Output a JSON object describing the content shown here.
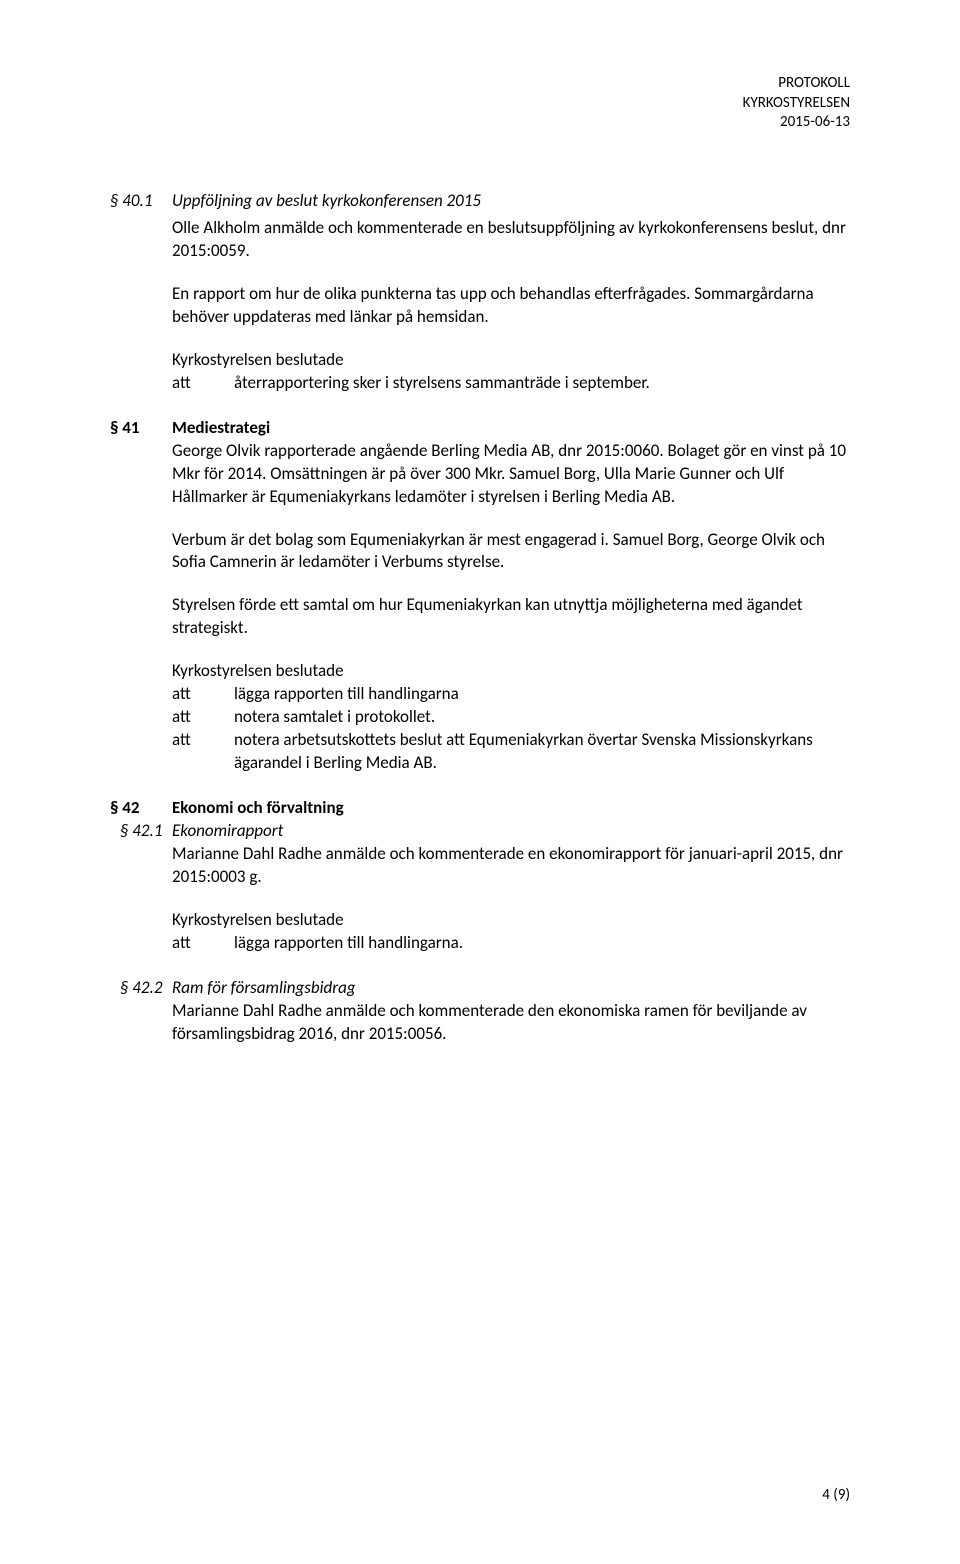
{
  "header": {
    "line1": "PROTOKOLL",
    "line2": "KYRKOSTYRELSEN",
    "line3": "2015-06-13"
  },
  "s40_1": {
    "num": "§ 40.1",
    "title": "Uppföljning av beslut kyrkokonferensen 2015",
    "p1": "Olle Alkholm anmälde och kommenterade en beslutsuppföljning av kyrkokonferensens beslut, dnr 2015:0059.",
    "p2": "En rapport om hur de olika punkterna tas upp och behandlas efterfrågades. Sommargårdarna behöver uppdateras med länkar på hemsidan.",
    "decision_intro": "Kyrkostyrelsen beslutade",
    "att": "att",
    "d1": "återrapportering sker i styrelsens sammanträde i september."
  },
  "s41": {
    "num": "§ 41",
    "title": "Mediestrategi",
    "p1": "George Olvik rapporterade angående Berling Media AB, dnr 2015:0060. Bolaget gör en vinst på 10 Mkr för 2014. Omsättningen är på över 300 Mkr. Samuel Borg, Ulla Marie Gunner och Ulf Hållmarker är Equmeniakyrkans ledamöter i styrelsen i Berling Media AB.",
    "p2": "Verbum är det bolag som Equmeniakyrkan är mest engagerad i. Samuel Borg, George Olvik och Sofia Camnerin är ledamöter i Verbums styrelse.",
    "p3": "Styrelsen förde ett samtal om hur Equmeniakyrkan kan utnyttja möjligheterna med ägandet strategiskt.",
    "decision_intro": "Kyrkostyrelsen beslutade",
    "att": "att",
    "d1": "lägga rapporten till handlingarna",
    "d2": "notera samtalet i protokollet.",
    "d3": "notera arbetsutskottets beslut att Equmeniakyrkan övertar Svenska Missionskyrkans ägarandel i Berling Media AB."
  },
  "s42": {
    "num": "§ 42",
    "title": "Ekonomi och förvaltning"
  },
  "s42_1": {
    "num": "§ 42.1",
    "title": "Ekonomirapport",
    "p1": "Marianne Dahl Radhe anmälde och kommenterade en ekonomirapport för januari-april 2015, dnr 2015:0003 g.",
    "decision_intro": "Kyrkostyrelsen beslutade",
    "att": "att",
    "d1": "lägga rapporten till handlingarna."
  },
  "s42_2": {
    "num": "§ 42.2",
    "title": "Ram för församlingsbidrag",
    "p1": "Marianne Dahl Radhe anmälde och kommenterade den ekonomiska ramen för beviljande av församlingsbidrag 2016, dnr 2015:0056."
  },
  "footer": {
    "page": "4 (9)"
  }
}
